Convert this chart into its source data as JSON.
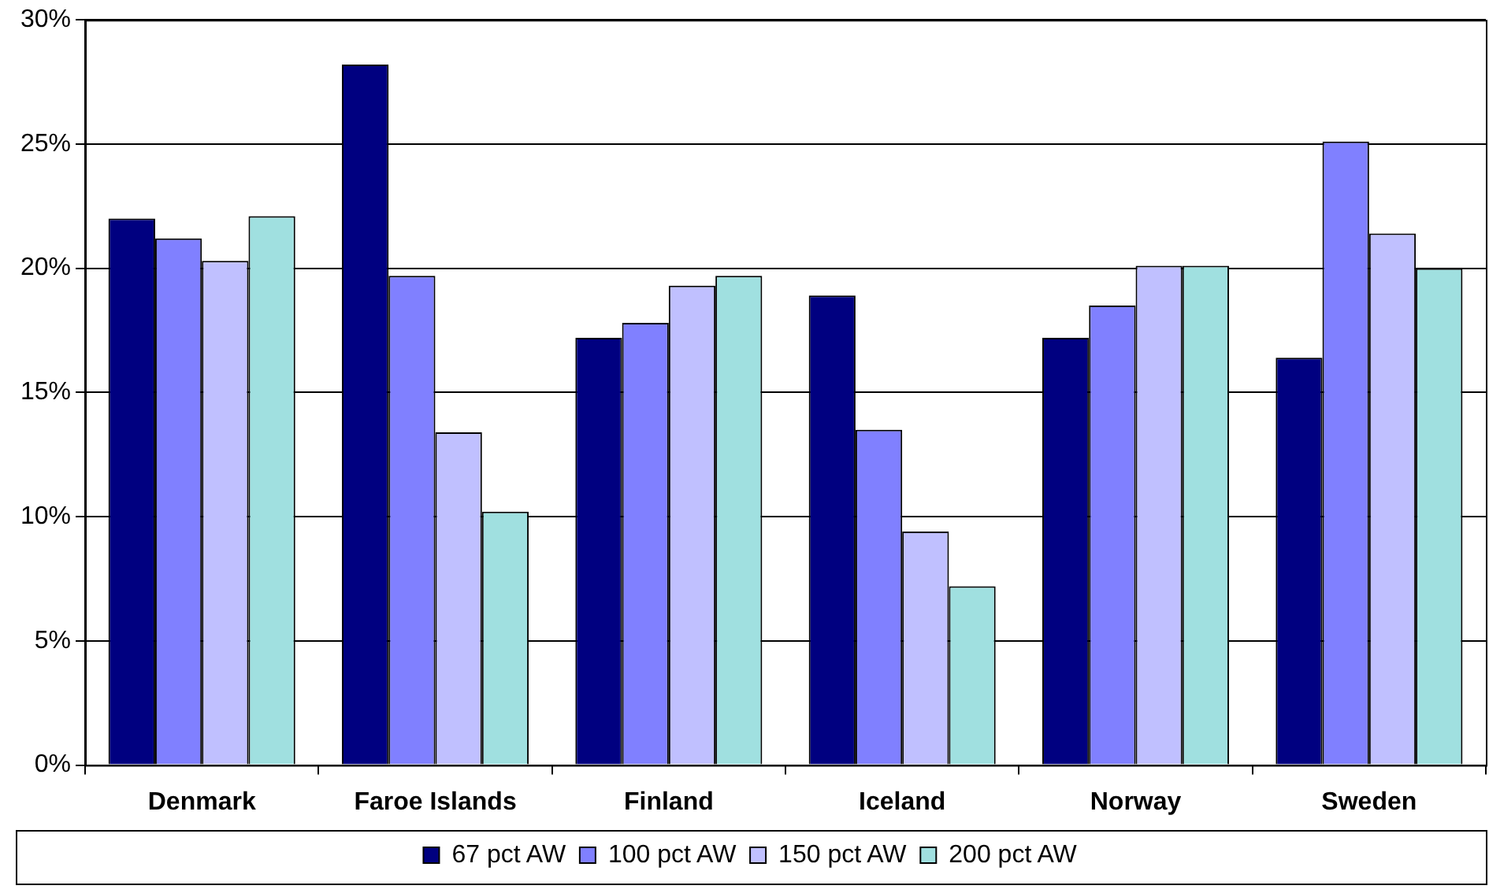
{
  "chart_data": {
    "type": "bar",
    "categories": [
      "Denmark",
      "Faroe Islands",
      "Finland",
      "Iceland",
      "Norway",
      "Sweden"
    ],
    "series": [
      {
        "name": "67 pct AW",
        "color": "#000080",
        "values": [
          22.0,
          28.2,
          17.2,
          18.9,
          17.2,
          16.4
        ]
      },
      {
        "name": "100 pct AW",
        "color": "#8080ff",
        "values": [
          21.2,
          19.7,
          17.8,
          13.5,
          18.5,
          25.1
        ]
      },
      {
        "name": "150 pct AW",
        "color": "#c0c0ff",
        "values": [
          20.3,
          13.4,
          19.3,
          9.4,
          20.1,
          21.4
        ]
      },
      {
        "name": "200 pct AW",
        "color": "#a0e0e0",
        "values": [
          22.1,
          10.2,
          19.7,
          7.2,
          20.1,
          20.0
        ]
      }
    ],
    "ylim": [
      0,
      30
    ],
    "yticks": [
      {
        "value": 0,
        "label": "0%"
      },
      {
        "value": 5,
        "label": "5%"
      },
      {
        "value": 10,
        "label": "10%"
      },
      {
        "value": 15,
        "label": "15%"
      },
      {
        "value": 20,
        "label": "20%"
      },
      {
        "value": 25,
        "label": "25%"
      },
      {
        "value": 30,
        "label": "30%"
      }
    ],
    "grid": "y",
    "legend": "bottom"
  }
}
